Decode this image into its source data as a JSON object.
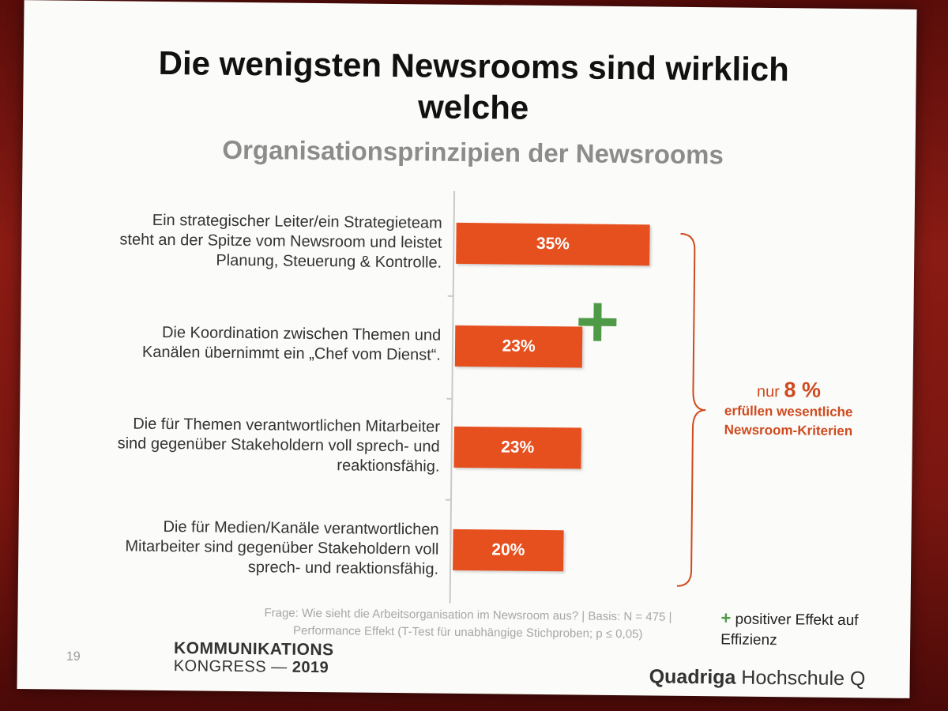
{
  "slide": {
    "title": "Die wenigsten Newsrooms sind wirklich welche",
    "subtitle": "Organisationsprinzipien der Newsrooms",
    "page_number": "19",
    "footnote_line1": "Frage: Wie sieht die Arbeitsorganisation im Newsroom aus? | Basis: N = 475 |",
    "footnote_line2": "Performance Effekt (T-Test für unabhängige Stichproben; p ≤ 0,05)",
    "callout": {
      "prefix": "nur",
      "value": "8 %",
      "line2": "erfüllen wesentliche",
      "line3": "Newsroom-Kriterien"
    },
    "legend": {
      "symbol": "+",
      "text_line1": "positiver Effekt auf",
      "text_line2": "Effizienz"
    },
    "logo_left": {
      "line1": "KOMMUNIKATIONS",
      "line2_prefix": "KONGRESS —",
      "line2_year": "2019"
    },
    "logo_right": {
      "bold": "Quadriga",
      "normal": "Hochschule",
      "mark": "Q"
    },
    "colors": {
      "bar": "#e6501f",
      "accent_text": "#cf4a1e",
      "positive_effect": "#4e9a46",
      "subtitle": "#8c8c8c"
    },
    "icons": [
      "plus-icon",
      "brace-icon"
    ]
  },
  "chart_data": {
    "type": "bar",
    "orientation": "horizontal",
    "categories": [
      [
        "Ein strategischer Leiter/ein Strategieteam",
        "steht an der Spitze vom Newsroom und leistet",
        "Planung, Steuerung & Kontrolle."
      ],
      [
        "Die Koordination zwischen Themen und",
        "Kanälen übernimmt ein „Chef vom Dienst“."
      ],
      [
        "Die für Themen verantwortlichen Mitarbeiter",
        "sind gegenüber Stakeholdern voll sprech- und",
        "reaktionsfähig."
      ],
      [
        "Die für Medien/Kanäle verantwortlichen",
        "Mitarbeiter sind gegenüber Stakeholdern voll",
        "sprech- und reaktionsfähig."
      ]
    ],
    "values": [
      35,
      23,
      23,
      20
    ],
    "value_labels": [
      "35%",
      "23%",
      "23%",
      "20%"
    ],
    "unit": "%",
    "positive_effect": [
      false,
      true,
      false,
      false
    ],
    "grid": false
  }
}
